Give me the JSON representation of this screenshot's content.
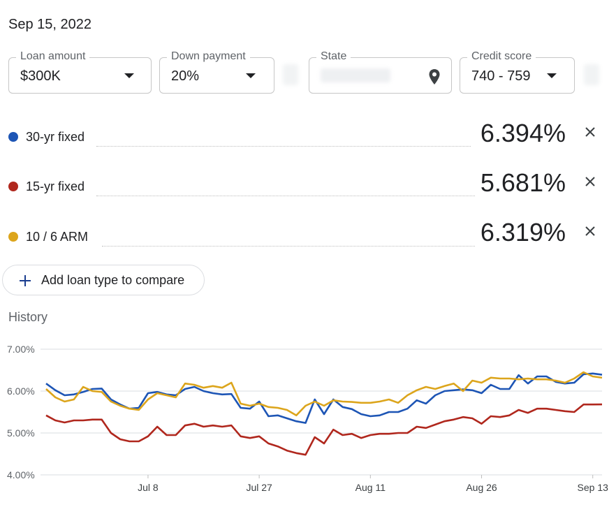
{
  "date": "Sep 15, 2022",
  "filters": {
    "loan_amount": {
      "label": "Loan amount",
      "value": "$300K"
    },
    "down_payment": {
      "label": "Down payment",
      "value": "20%"
    },
    "state": {
      "label": "State",
      "value": ""
    },
    "credit_score": {
      "label": "Credit score",
      "value": "740 - 759"
    }
  },
  "rates": [
    {
      "label": "30-yr fixed",
      "value": "6.394%",
      "color": "#1d55b5"
    },
    {
      "label": "15-yr fixed",
      "value": "5.681%",
      "color": "#b0271d"
    },
    {
      "label": "10 / 6 ARM",
      "value": "6.319%",
      "color": "#dca51c"
    }
  ],
  "add_button": {
    "label": "Add loan type to compare"
  },
  "history_label": "History",
  "chart_data": {
    "type": "line",
    "title": "",
    "ylim": [
      4.0,
      7.0
    ],
    "y_ticks": [
      "4.00%",
      "5.00%",
      "6.00%",
      "7.00%"
    ],
    "x_ticks": [
      "Jul 8",
      "Jul 27",
      "Aug 11",
      "Aug 26",
      "Sep 13"
    ],
    "x_tick_index": [
      11,
      23,
      35,
      47,
      59
    ],
    "grid": true,
    "series": [
      {
        "color": "#1d55b5",
        "values": [
          6.18,
          6.02,
          5.9,
          5.92,
          5.98,
          6.05,
          6.06,
          5.8,
          5.68,
          5.58,
          5.6,
          5.95,
          5.98,
          5.92,
          5.9,
          6.05,
          6.1,
          6.0,
          5.95,
          5.92,
          5.93,
          5.6,
          5.58,
          5.75,
          5.4,
          5.42,
          5.35,
          5.28,
          5.24,
          5.8,
          5.45,
          5.8,
          5.62,
          5.57,
          5.45,
          5.4,
          5.42,
          5.5,
          5.5,
          5.58,
          5.78,
          5.7,
          5.9,
          6.0,
          6.02,
          6.04,
          6.02,
          5.95,
          6.15,
          6.05,
          6.05,
          6.38,
          6.18,
          6.35,
          6.35,
          6.22,
          6.18,
          6.2,
          6.4,
          6.42,
          6.39
        ]
      },
      {
        "color": "#b0271d",
        "values": [
          5.42,
          5.3,
          5.25,
          5.3,
          5.3,
          5.32,
          5.32,
          5.0,
          4.85,
          4.8,
          4.8,
          4.92,
          5.15,
          4.95,
          4.95,
          5.18,
          5.22,
          5.15,
          5.18,
          5.15,
          5.18,
          4.92,
          4.88,
          4.92,
          4.75,
          4.68,
          4.58,
          4.52,
          4.48,
          4.9,
          4.75,
          5.08,
          4.95,
          4.98,
          4.88,
          4.95,
          4.98,
          4.98,
          5.0,
          5.0,
          5.15,
          5.12,
          5.2,
          5.28,
          5.32,
          5.38,
          5.35,
          5.22,
          5.4,
          5.38,
          5.42,
          5.55,
          5.48,
          5.58,
          5.58,
          5.55,
          5.52,
          5.5,
          5.68,
          5.68,
          5.681
        ]
      },
      {
        "color": "#dca51c",
        "values": [
          6.05,
          5.85,
          5.75,
          5.8,
          6.1,
          6.0,
          5.98,
          5.75,
          5.65,
          5.58,
          5.55,
          5.8,
          5.95,
          5.9,
          5.85,
          6.18,
          6.15,
          6.08,
          6.12,
          6.08,
          6.2,
          5.7,
          5.65,
          5.7,
          5.62,
          5.6,
          5.55,
          5.42,
          5.65,
          5.75,
          5.65,
          5.78,
          5.75,
          5.74,
          5.72,
          5.72,
          5.75,
          5.8,
          5.72,
          5.9,
          6.02,
          6.1,
          6.05,
          6.12,
          6.18,
          6.0,
          6.25,
          6.2,
          6.32,
          6.3,
          6.3,
          6.28,
          6.3,
          6.28,
          6.28,
          6.25,
          6.2,
          6.3,
          6.45,
          6.35,
          6.319
        ]
      }
    ]
  }
}
